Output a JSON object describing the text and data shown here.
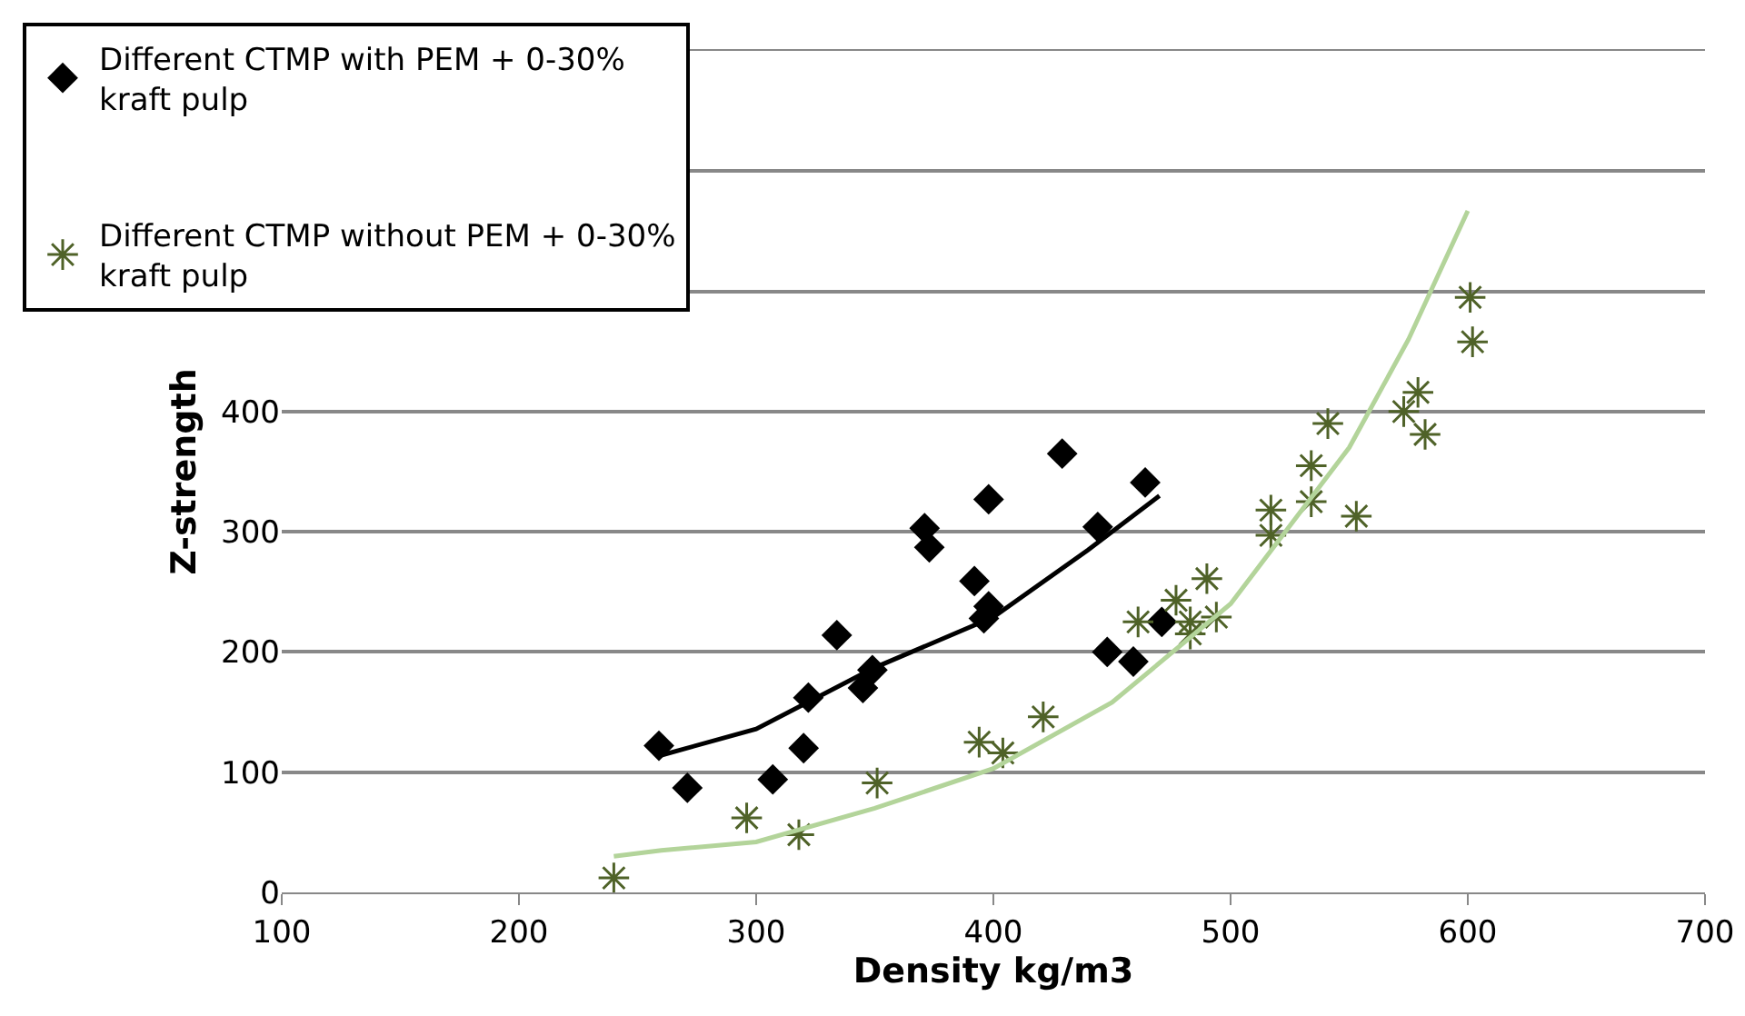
{
  "chart_data": {
    "type": "scatter",
    "xlabel": "Density kg/m3",
    "ylabel": "Z-strength",
    "xlim": [
      100,
      700
    ],
    "xticks": [
      100,
      200,
      300,
      400,
      500,
      600,
      700
    ],
    "ylim": [
      0,
      700
    ],
    "yticks": [
      0,
      100,
      200,
      300,
      400,
      {
        "value": 500,
        "label": null
      },
      {
        "value": 600,
        "label": null
      },
      {
        "value": 700,
        "label": null
      }
    ],
    "grid": "y",
    "legend": "top left",
    "series": [
      {
        "name": "Different CTMP with PEM + 0-30% kraft pulp",
        "color": "#000000",
        "marker": "diamond",
        "x": [
          259,
          271,
          307,
          320,
          322,
          334,
          345,
          349,
          371,
          373,
          392,
          398,
          396,
          398,
          429,
          444,
          448,
          459,
          464,
          471
        ],
        "values": [
          122,
          87,
          94,
          120,
          162,
          214,
          170,
          185,
          303,
          287,
          259,
          327,
          228,
          238,
          365,
          304,
          200,
          192,
          341,
          225
        ]
      },
      {
        "name": "Different CTMP without PEM + 0-30% kraft pulp",
        "color": "#4f6228",
        "marker": "cross",
        "x": [
          240,
          296,
          318,
          351,
          394,
          404,
          421,
          461,
          477,
          483,
          483,
          490,
          494,
          517,
          517,
          534,
          534,
          541,
          553,
          573,
          579,
          582,
          601,
          602
        ],
        "values": [
          12,
          62,
          48,
          91,
          125,
          116,
          146,
          225,
          243,
          225,
          215,
          261,
          229,
          318,
          297,
          355,
          325,
          390,
          313,
          400,
          416,
          381,
          495,
          458
        ]
      },
      {
        "type": "line",
        "color": "#000000",
        "marker": "none",
        "x": [
          258,
          300,
          350,
          400,
          440,
          470
        ],
        "values": [
          113,
          136,
          187,
          229,
          285,
          330
        ]
      },
      {
        "type": "line",
        "color": "#b3d49a",
        "marker": "none",
        "x": [
          240,
          260,
          300,
          350,
          400,
          450,
          500,
          550,
          575,
          600
        ],
        "values": [
          30,
          35,
          42,
          70,
          103,
          158,
          240,
          370,
          460,
          567
        ]
      }
    ]
  }
}
